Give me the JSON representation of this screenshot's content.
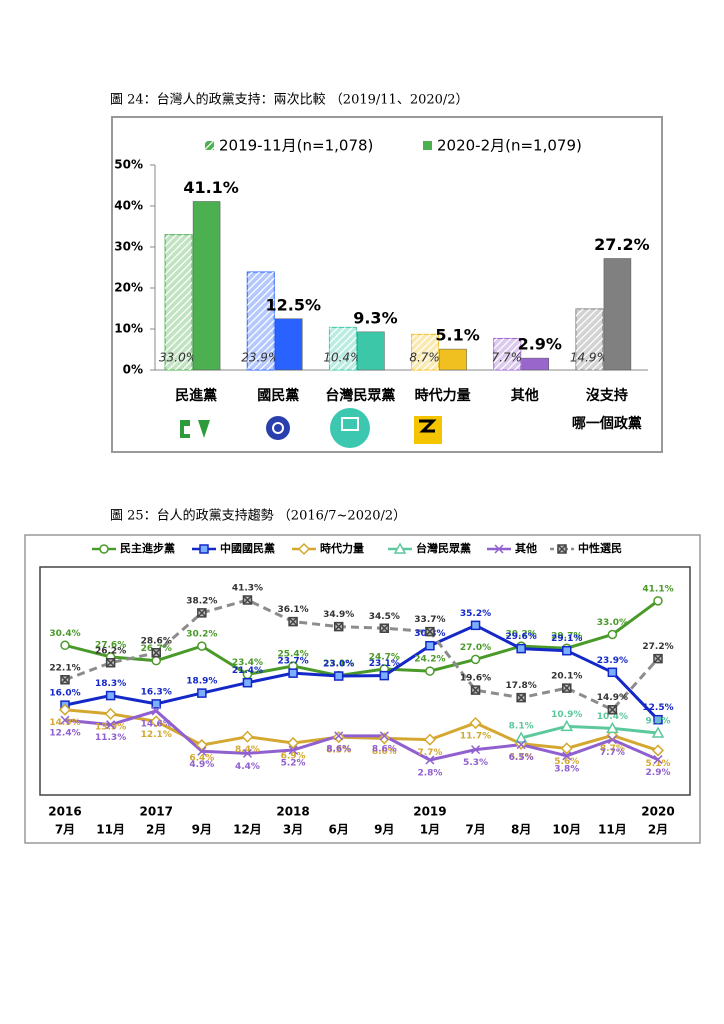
{
  "chart_data": [
    {
      "type": "bar",
      "title": "圖 24：台灣人的政黨支持：兩次比較 （2019/11、2020/2）",
      "categories": [
        [
          "民進黨"
        ],
        [
          "國民黨"
        ],
        [
          "台灣民眾黨"
        ],
        [
          "時代力量"
        ],
        [
          "其他"
        ],
        [
          "沒支持",
          "哪一個政黨"
        ]
      ],
      "colors": [
        "#4caf50",
        "#2962ff",
        "#3cc8a8",
        "#f0c020",
        "#9966cc",
        "#808080"
      ],
      "series": [
        {
          "name": "2019-11月(n=1,078)",
          "values": [
            33.0,
            23.9,
            10.4,
            8.7,
            7.7,
            14.9
          ],
          "value_labels": [
            "33.0%",
            "23.9%",
            "10.4%",
            "8.7%",
            "7.7%",
            "14.9%"
          ]
        },
        {
          "name": "2020-2月(n=1,079)",
          "values": [
            41.1,
            12.5,
            9.3,
            5.1,
            2.9,
            27.2
          ],
          "value_labels": [
            "41.1%",
            "12.5%",
            "9.3%",
            "5.1%",
            "2.9%",
            "27.2%"
          ]
        }
      ],
      "ylim": [
        0,
        50
      ],
      "yticks": [
        {
          "value": 0,
          "label": "0%"
        },
        {
          "value": 10,
          "label": "10%"
        },
        {
          "value": 20,
          "label": "20%"
        },
        {
          "value": 30,
          "label": "30%"
        },
        {
          "value": 40,
          "label": "40%"
        },
        {
          "value": 50,
          "label": "50%"
        }
      ]
    },
    {
      "type": "line",
      "title": "圖 25：台人的政黨支持趨勢 （2016/7~2020/2）",
      "years": [
        "2016",
        null,
        "2017",
        null,
        null,
        "2018",
        null,
        null,
        "2019",
        null,
        null,
        null,
        null,
        "2020"
      ],
      "categories": [
        "7月",
        "11月",
        "2月",
        "9月",
        "12月",
        "3月",
        "6月",
        "9月",
        "1月",
        "7月",
        "8月",
        "10月",
        "11月",
        "2月"
      ],
      "series": [
        {
          "name": "民主進步黨",
          "color": "#4a9a2a",
          "marker": "circle",
          "label_side": "above",
          "values": [
            30.4,
            27.6,
            26.7,
            30.2,
            23.4,
            25.4,
            23.1,
            24.7,
            24.2,
            27.0,
            30.2,
            29.7,
            33.0,
            41.1
          ],
          "value_labels": [
            "30.4%",
            "27.6%",
            "26.7%",
            "30.2%",
            "23.4%",
            "25.4%",
            "23.1%",
            "24.7%",
            "24.2%",
            "27.0%",
            "30.2%",
            "29.7%",
            "33.0%",
            "41.1%"
          ]
        },
        {
          "name": "中國國民黨",
          "color": "#1428c8",
          "marker": "square",
          "label_side": "above",
          "values": [
            16.0,
            18.3,
            16.3,
            18.9,
            21.4,
            23.7,
            23.0,
            23.1,
            30.3,
            35.2,
            29.6,
            29.1,
            23.9,
            12.5
          ],
          "value_labels": [
            "16.0%",
            "18.3%",
            "16.3%",
            "18.9%",
            "21.4%",
            "23.7%",
            "23.0%",
            "23.1%",
            "30.3%",
            "35.2%",
            "29.6%",
            "29.1%",
            "23.9%",
            "12.5%"
          ]
        },
        {
          "name": "時代力量",
          "color": "#d4a830",
          "marker": "diamond",
          "label_side": "below",
          "values": [
            14.9,
            13.9,
            12.1,
            6.4,
            8.4,
            6.9,
            8.3,
            8.0,
            7.7,
            11.7,
            6.7,
            5.6,
            8.7,
            5.1
          ],
          "value_labels": [
            "14.9%",
            "13.9%",
            "12.1%",
            "6.4%",
            "8.4%",
            "6.9%",
            "8.3%",
            "8.0%",
            "7.7%",
            "11.7%",
            "6.7%",
            "5.6%",
            "8.7%",
            "5.1%"
          ]
        },
        {
          "name": "台灣民眾黨",
          "color": "#5cc89c",
          "marker": "triangle",
          "label_side": "above",
          "values": [
            null,
            null,
            null,
            null,
            null,
            null,
            null,
            null,
            null,
            null,
            8.1,
            10.9,
            10.4,
            9.3
          ],
          "value_labels": [
            null,
            null,
            null,
            null,
            null,
            null,
            null,
            null,
            null,
            null,
            "8.1%",
            "10.9%",
            "10.4%",
            "9.3%"
          ]
        },
        {
          "name": "其他",
          "color": "#9060d0",
          "marker": "x",
          "label_side": "below",
          "values": [
            12.4,
            11.3,
            14.6,
            4.9,
            4.4,
            5.2,
            8.6,
            8.6,
            2.8,
            5.3,
            6.5,
            3.8,
            7.7,
            2.9
          ],
          "value_labels": [
            "12.4%",
            "11.3%",
            "14.6%",
            "4.9%",
            "4.4%",
            "5.2%",
            "8.6%",
            "8.6%",
            "2.8%",
            "5.3%",
            "6.5%",
            "3.8%",
            "7.7%",
            "2.9%"
          ]
        },
        {
          "name": "中性選民",
          "color": "#8c8c8c",
          "marker": "xbox",
          "dashed": true,
          "label_side": "above",
          "values": [
            22.1,
            26.2,
            28.6,
            38.2,
            41.3,
            36.1,
            34.9,
            34.5,
            33.7,
            19.6,
            17.8,
            20.1,
            14.9,
            27.2
          ],
          "value_labels": [
            "22.1%",
            "26.2%",
            "28.6%",
            "38.2%",
            "41.3%",
            "36.1%",
            "34.9%",
            "34.5%",
            "33.7%",
            "19.6%",
            "17.8%",
            "20.1%",
            "14.9%",
            "27.2%"
          ]
        }
      ]
    }
  ]
}
